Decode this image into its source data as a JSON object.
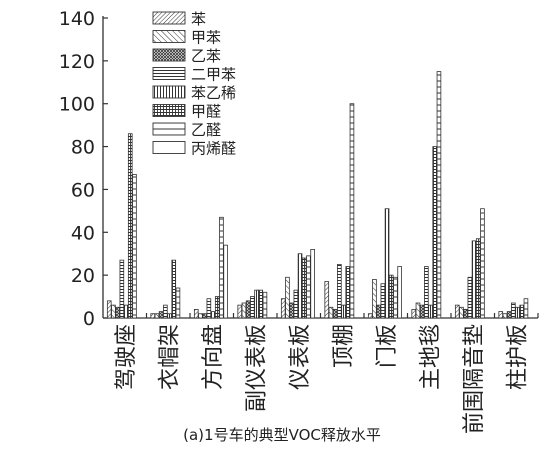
{
  "caption": "(a)1号车的典型VOC释放水平",
  "chart_data": {
    "type": "bar",
    "title": "",
    "xlabel": "",
    "ylabel": "",
    "ylim": [
      0,
      140
    ],
    "yticks": [
      "0",
      "20",
      "40",
      "60",
      "80",
      "100",
      "120",
      "140"
    ],
    "legend_position": "top-left",
    "categories": [
      "驾驶座",
      "衣帽架",
      "方向盘",
      "副仪表板",
      "仪表板",
      "顶棚",
      "门板",
      "主地毯",
      "前围隔音垫",
      "柱护板"
    ],
    "series": [
      {
        "name": "苯",
        "values": [
          8,
          2,
          4,
          6,
          9,
          17,
          2,
          4,
          6,
          3
        ]
      },
      {
        "name": "甲苯",
        "values": [
          6,
          2,
          2,
          7,
          19,
          5,
          18,
          7,
          5,
          2
        ]
      },
      {
        "name": "乙苯",
        "values": [
          5,
          3,
          2,
          8,
          7,
          4,
          6,
          6,
          4,
          3
        ]
      },
      {
        "name": "二甲苯",
        "values": [
          27,
          6,
          9,
          10,
          13,
          25,
          16,
          24,
          19,
          7
        ]
      },
      {
        "name": "苯乙稀",
        "values": [
          6,
          2,
          3,
          13,
          30,
          6,
          51,
          6,
          36,
          5
        ]
      },
      {
        "name": "甲醛",
        "values": [
          86,
          27,
          10,
          13,
          28,
          24,
          20,
          80,
          37,
          6
        ]
      },
      {
        "name": "乙醛",
        "values": [
          67,
          14,
          47,
          12,
          29,
          100,
          19,
          115,
          51,
          9
        ]
      },
      {
        "name": "丙烯醛",
        "values": [
          0,
          0,
          34,
          0,
          32,
          0,
          24,
          0,
          0,
          0
        ]
      }
    ],
    "colors": {
      "axis": "#333333",
      "bar_stroke": "#333333",
      "bar_fill": "#ffffff"
    }
  }
}
